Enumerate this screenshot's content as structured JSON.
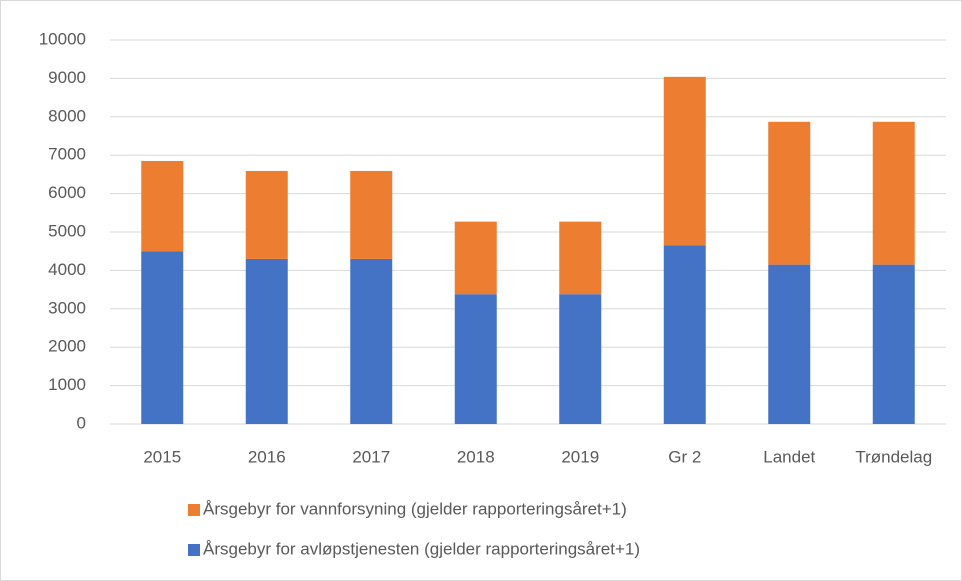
{
  "chart_data": {
    "type": "bar",
    "stacked": true,
    "categories": [
      "2015",
      "2016",
      "2017",
      "2018",
      "2019",
      "Gr 2",
      "Landet",
      "Trøndelag"
    ],
    "series": [
      {
        "name": "Årsgebyr for avløpstjenesten (gjelder rapporteringsåret+1)",
        "color": "#4472c4",
        "values": [
          4500,
          4300,
          4300,
          3380,
          3380,
          4650,
          4150,
          4150
        ]
      },
      {
        "name": "Årsgebyr for vannforsyning (gjelder rapporteringsåret+1)",
        "color": "#ed7d31",
        "values": [
          2350,
          2290,
          2290,
          1890,
          1890,
          4390,
          3720,
          3720
        ]
      }
    ],
    "ylim": [
      0,
      10000
    ],
    "yticks": [
      0,
      1000,
      2000,
      3000,
      4000,
      5000,
      6000,
      7000,
      8000,
      9000,
      10000
    ],
    "grid": true,
    "legend": "bottom"
  }
}
